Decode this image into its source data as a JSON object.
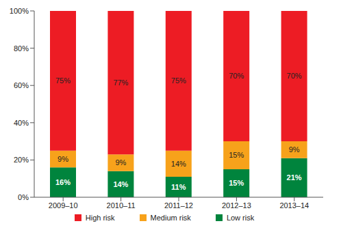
{
  "chart_data": {
    "type": "bar",
    "stacked": true,
    "categories": [
      "2009–10",
      "2010–11",
      "2011–12",
      "2012–13",
      "2013–14"
    ],
    "series": [
      {
        "name": "High risk",
        "color": "#ed1c24",
        "values": [
          75,
          77,
          75,
          70,
          70
        ],
        "value_labels": [
          "75%",
          "77%",
          "75%",
          "70%",
          "70%"
        ]
      },
      {
        "name": "Medium risk",
        "color": "#f7a21b",
        "values": [
          9,
          9,
          14,
          15,
          9
        ],
        "value_labels": [
          "9%",
          "9%",
          "14%",
          "15%",
          "9%"
        ]
      },
      {
        "name": "Low risk",
        "color": "#00843d",
        "values": [
          16,
          14,
          11,
          15,
          21
        ],
        "value_labels": [
          "16%",
          "14%",
          "11%",
          "15%",
          "21%"
        ]
      }
    ],
    "ylim": [
      0,
      100
    ],
    "yticks": [
      {
        "value": 0,
        "label": "0%"
      },
      {
        "value": 20,
        "label": "20%"
      },
      {
        "value": 40,
        "label": "40%"
      },
      {
        "value": 60,
        "label": "60%"
      },
      {
        "value": 80,
        "label": "80%"
      },
      {
        "value": 100,
        "label": "100%"
      }
    ],
    "data_labels": true,
    "legend": "bottom",
    "grid": false
  }
}
